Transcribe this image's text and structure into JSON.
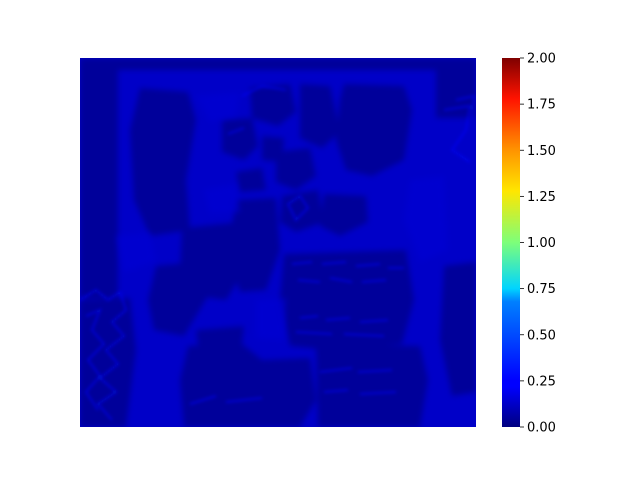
{
  "chart_data": {
    "type": "heatmap",
    "title": "",
    "xlabel": "",
    "ylabel": "",
    "colormap": "jet",
    "color_range": [
      0,
      2
    ],
    "colorbar": {
      "ticks": [
        0.0,
        0.25,
        0.5,
        0.75,
        1.0,
        1.25,
        1.5,
        1.75,
        2.0
      ],
      "tick_labels": [
        "0.00",
        "0.25",
        "0.50",
        "0.75",
        "1.00",
        "1.25",
        "1.50",
        "1.75",
        "2.00"
      ]
    },
    "value_summary": {
      "background_level": 0.1,
      "dark_region_level": 0.03,
      "edge_highlight_level": 0.2
    },
    "axes_visible": false
  }
}
